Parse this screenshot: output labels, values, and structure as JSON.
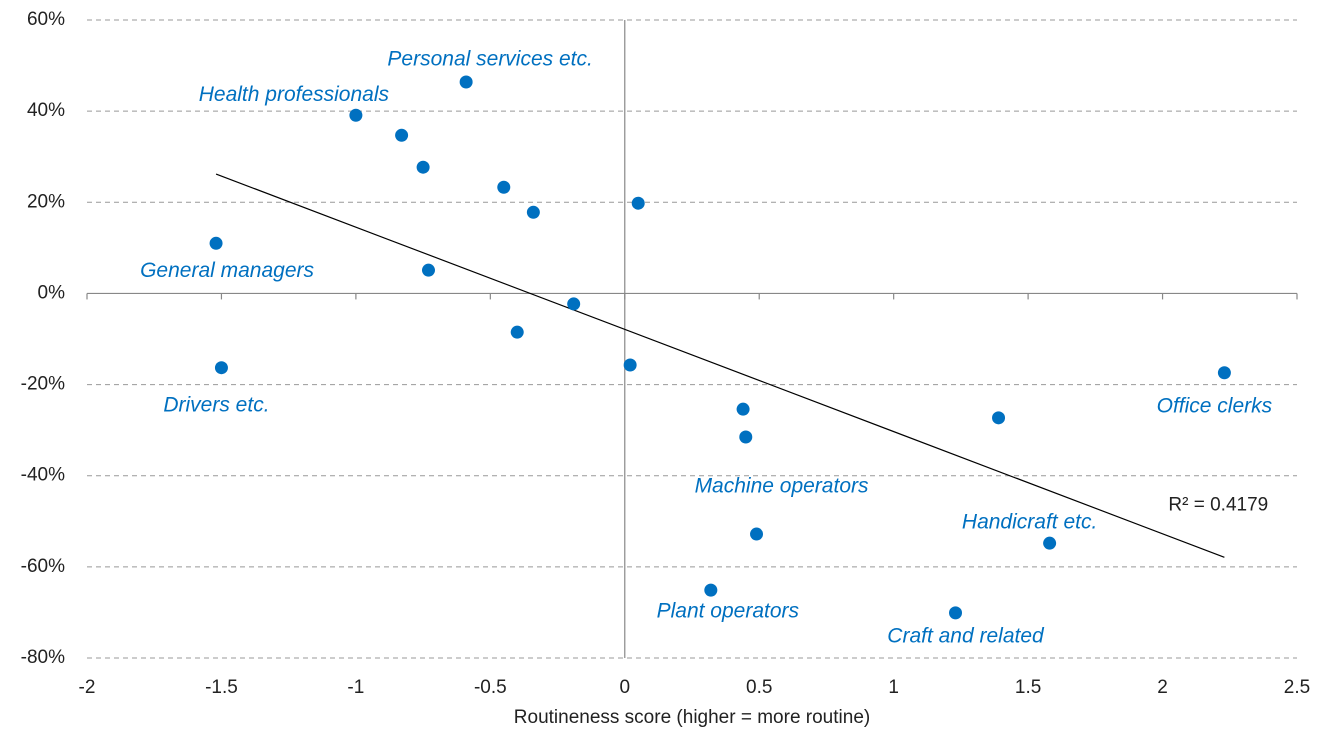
{
  "chart_data": {
    "type": "scatter",
    "x_label": "Routineness score (higher = more routine)",
    "xlim": [
      -2,
      2.5
    ],
    "xticks": [
      -2,
      -1.5,
      -1,
      -0.5,
      0,
      0.5,
      1,
      1.5,
      2,
      2.5
    ],
    "ylim": [
      -80,
      60
    ],
    "yticks": [
      {
        "value": -80,
        "label": "-80%"
      },
      {
        "value": -60,
        "label": "-60%"
      },
      {
        "value": -40,
        "label": "-40%"
      },
      {
        "value": -20,
        "label": "-20%"
      },
      {
        "value": 0,
        "label": "0%"
      },
      {
        "value": 20,
        "label": "20%"
      },
      {
        "value": 40,
        "label": "40%"
      },
      {
        "value": 60,
        "label": "60%"
      }
    ],
    "grid": true,
    "color": "#0070c0",
    "x": [
      -0.59,
      -1.0,
      -0.83,
      -0.75,
      -0.45,
      -0.34,
      0.05,
      -1.52,
      -0.73,
      -0.19,
      -0.4,
      -1.5,
      0.02,
      2.23,
      0.44,
      0.45,
      1.39,
      0.49,
      1.58,
      0.32,
      1.23
    ],
    "values": [
      46.4,
      39.1,
      34.7,
      27.7,
      23.3,
      17.8,
      19.8,
      11.0,
      5.1,
      -2.3,
      -8.5,
      -16.3,
      -15.7,
      -17.4,
      -25.4,
      -31.5,
      -27.3,
      -52.8,
      -54.8,
      -65.1,
      -70.1
    ],
    "point_labels": [
      "Personal services etc.",
      "Health professionals",
      null,
      null,
      null,
      null,
      null,
      "General managers",
      null,
      null,
      null,
      "Drivers etc.",
      null,
      "Office clerks",
      null,
      null,
      null,
      "Machine operators",
      "Handicraft etc.",
      "Plant operators",
      "Craft and related"
    ],
    "trendline": {
      "x": [
        -1.52,
        2.23
      ],
      "y": [
        26.2,
        -57.9
      ],
      "annotation": "R² = 0.4179"
    }
  }
}
